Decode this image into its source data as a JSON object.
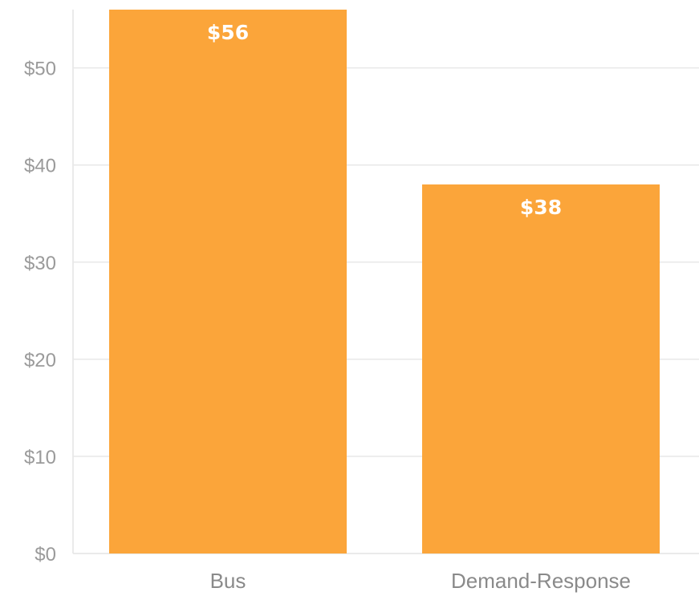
{
  "chart_data": {
    "type": "bar",
    "categories": [
      "Bus",
      "Demand-Response"
    ],
    "values": [
      56,
      38
    ],
    "data_labels": [
      "$56",
      "$38"
    ],
    "title": "",
    "xlabel": "",
    "ylabel": "",
    "ylim": [
      0,
      56
    ],
    "yticks": [
      0,
      10,
      20,
      30,
      40,
      50
    ],
    "ytick_labels": [
      "$0",
      "$10",
      "$20",
      "$30",
      "$40",
      "$50"
    ],
    "grid": true,
    "legend": "none",
    "bar_color": "#fba53a"
  }
}
